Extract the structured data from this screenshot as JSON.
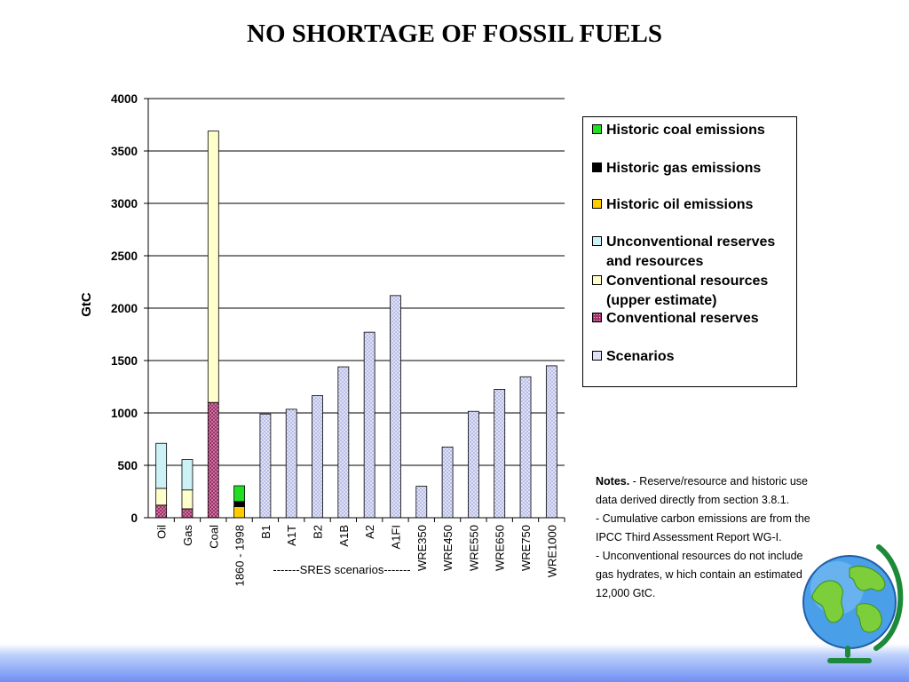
{
  "title": "NO  SHORTAGE OF FOSSIL FUELS",
  "chart_data": {
    "type": "bar",
    "stacked": true,
    "ylabel": "GtC",
    "ylim": [
      0,
      4000
    ],
    "yticks": [
      0,
      500,
      1000,
      1500,
      2000,
      2500,
      3000,
      3500,
      4000
    ],
    "grid": true,
    "categories": [
      "Oil",
      "Gas",
      "Coal",
      "1860 - 1998",
      "B1",
      "A1T",
      "B2",
      "A1B",
      "A2",
      "A1FI",
      "WRE350",
      "WRE450",
      "WRE550",
      "WRE650",
      "WRE750",
      "WRE1000"
    ],
    "group_annotation": "-------SRES scenarios-------",
    "series": [
      {
        "name": "Historic coal emissions",
        "color": "#22dd22",
        "pattern": "solid",
        "values": [
          0,
          0,
          0,
          150,
          0,
          0,
          0,
          0,
          0,
          0,
          0,
          0,
          0,
          0,
          0,
          0
        ]
      },
      {
        "name": "Historic gas emissions",
        "color": "#000000",
        "pattern": "solid",
        "values": [
          0,
          0,
          0,
          50,
          0,
          0,
          0,
          0,
          0,
          0,
          0,
          0,
          0,
          0,
          0,
          0
        ]
      },
      {
        "name": "Historic oil emissions",
        "color": "#ffcc00",
        "pattern": "solid",
        "values": [
          0,
          0,
          0,
          105,
          0,
          0,
          0,
          0,
          0,
          0,
          0,
          0,
          0,
          0,
          0,
          0
        ]
      },
      {
        "name": "Unconventional reserves and resources",
        "color": "#ccf2f5",
        "pattern": "solid",
        "values": [
          430,
          290,
          0,
          0,
          0,
          0,
          0,
          0,
          0,
          0,
          0,
          0,
          0,
          0,
          0,
          0
        ]
      },
      {
        "name": "Conventional resources (upper estimate)",
        "color": "#ffffcc",
        "pattern": "solid",
        "values": [
          160,
          180,
          2590,
          0,
          0,
          0,
          0,
          0,
          0,
          0,
          0,
          0,
          0,
          0,
          0,
          0
        ]
      },
      {
        "name": "Conventional reserves",
        "color": "#a0306a",
        "pattern": "dots",
        "values": [
          120,
          85,
          1100,
          0,
          0,
          0,
          0,
          0,
          0,
          0,
          0,
          0,
          0,
          0,
          0,
          0
        ]
      },
      {
        "name": "Scenarios",
        "color": "#e6e8f8",
        "pattern": "crosshatch",
        "values": [
          0,
          0,
          0,
          0,
          990,
          1035,
          1165,
          1440,
          1770,
          2120,
          300,
          675,
          1015,
          1225,
          1345,
          1450
        ]
      }
    ],
    "legend": {
      "position": "right",
      "entries": [
        [
          "Historic coal emissions"
        ],
        [
          "Historic gas emissions"
        ],
        [
          "Historic oil emissions"
        ],
        [
          "Unconventional reserves",
          "and resources"
        ],
        [
          "Conventional resources",
          "(upper estimate)"
        ],
        [
          "Conventional reserves"
        ],
        [
          "Scenarios"
        ]
      ]
    }
  },
  "notes": {
    "bold_label": "Notes.",
    "lines": [
      " - Reserve/resource and historic use",
      "data derived directly from section 3.8.1.",
      "-  Cumulative carbon emissions are from the",
      "IPCC Third Assessment Report WG-I.",
      "- Unconventional resources do not include",
      "gas hydrates, w hich contain an estimated",
      "12,000 GtC."
    ]
  },
  "globe_icon": "globe-icon",
  "colors": {
    "band_top": "#ffffff",
    "band_bottom": "#6f8ff3"
  }
}
